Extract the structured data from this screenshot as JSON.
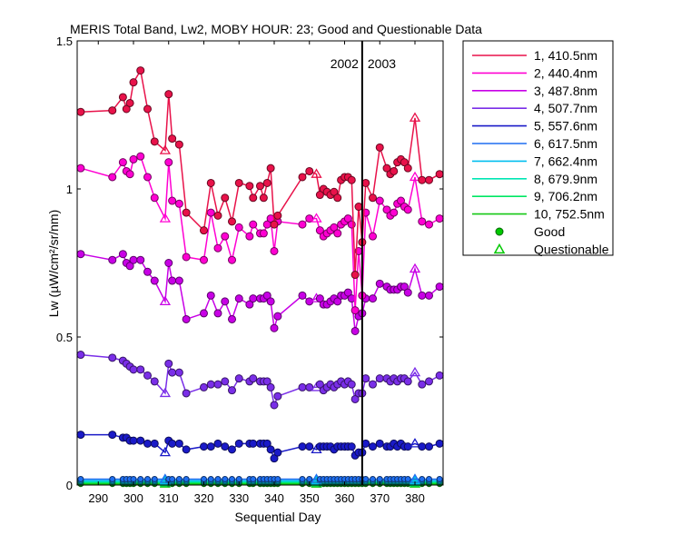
{
  "chart_data": {
    "type": "line",
    "title": "MERIS Total Band,  Lw2, MOBY HOUR: 23;  Good and Questionable Data",
    "xlabel": "Sequential Day",
    "ylabel": "Lw (µW/cm²/sr/nm)",
    "xlim": [
      284,
      388
    ],
    "ylim": [
      0,
      1.5
    ],
    "xticks": [
      290,
      300,
      310,
      320,
      330,
      340,
      350,
      360,
      370,
      380
    ],
    "yticks": [
      0,
      0.5,
      1,
      1.5
    ],
    "ytick_labels": [
      "0",
      "0.5",
      "1",
      "1.5"
    ],
    "grid": false,
    "year_divider": {
      "x": 365,
      "left_label": "2002",
      "right_label": "2003"
    },
    "legend_position": "outside-right",
    "x": [
      285,
      294,
      297,
      298,
      299,
      300,
      302,
      304,
      306,
      309,
      310,
      311,
      313,
      315,
      320,
      322,
      324,
      326,
      328,
      330,
      333,
      334,
      336,
      337,
      338,
      339,
      340,
      341,
      348,
      350,
      352,
      353,
      354,
      355,
      356,
      357,
      358,
      359,
      360,
      361,
      362,
      363,
      364,
      365,
      366,
      368,
      370,
      372,
      373,
      374,
      375,
      376,
      377,
      378,
      380,
      382,
      384,
      387
    ],
    "questionable_x": [
      309,
      352,
      369,
      380
    ],
    "series": [
      {
        "name": "1, 410.5nm",
        "color": "#E8124A",
        "values": [
          1.26,
          1.265,
          1.31,
          1.27,
          1.29,
          1.36,
          1.4,
          1.27,
          1.16,
          1.13,
          1.32,
          1.17,
          1.15,
          0.92,
          0.86,
          1.02,
          0.91,
          0.97,
          0.89,
          1.02,
          1.01,
          0.97,
          1.01,
          0.97,
          1.02,
          1.07,
          0.88,
          0.91,
          1.04,
          1.06,
          1.05,
          0.98,
          1.0,
          0.99,
          0.98,
          0.99,
          0.97,
          1.03,
          1.04,
          1.04,
          1.03,
          0.71,
          0.94,
          0.82,
          1.02,
          0.97,
          1.14,
          1.07,
          1.05,
          1.06,
          1.09,
          1.1,
          1.09,
          1.07,
          1.24,
          1.03,
          1.03,
          1.05
        ]
      },
      {
        "name": "2, 440.4nm",
        "color": "#FF00D2",
        "values": [
          1.07,
          1.04,
          1.09,
          1.06,
          1.05,
          1.1,
          1.11,
          1.04,
          0.97,
          0.9,
          1.09,
          0.96,
          0.95,
          0.77,
          0.76,
          0.92,
          0.8,
          0.84,
          0.76,
          0.87,
          0.84,
          0.88,
          0.85,
          0.85,
          0.88,
          0.9,
          0.79,
          0.89,
          0.88,
          0.9,
          0.9,
          0.86,
          0.84,
          0.85,
          0.86,
          0.87,
          0.85,
          0.88,
          0.89,
          0.9,
          0.88,
          0.59,
          0.79,
          0.64,
          0.92,
          0.84,
          0.96,
          0.93,
          0.91,
          0.92,
          0.95,
          0.96,
          0.94,
          0.93,
          1.04,
          0.89,
          0.88,
          0.9
        ]
      },
      {
        "name": "3, 487.8nm",
        "color": "#C800E6",
        "values": [
          0.78,
          0.76,
          0.78,
          0.75,
          0.74,
          0.76,
          0.76,
          0.72,
          0.69,
          0.62,
          0.75,
          0.69,
          0.69,
          0.56,
          0.58,
          0.64,
          0.58,
          0.62,
          0.56,
          0.63,
          0.61,
          0.63,
          0.63,
          0.63,
          0.64,
          0.62,
          0.53,
          0.57,
          0.64,
          0.62,
          0.63,
          0.63,
          0.61,
          0.61,
          0.62,
          0.63,
          0.62,
          0.64,
          0.64,
          0.65,
          0.63,
          0.52,
          0.57,
          0.58,
          0.63,
          0.63,
          0.68,
          0.67,
          0.66,
          0.66,
          0.66,
          0.67,
          0.67,
          0.65,
          0.73,
          0.64,
          0.64,
          0.67
        ]
      },
      {
        "name": "4, 507.7nm",
        "color": "#7A2EE8",
        "values": [
          0.44,
          0.43,
          0.42,
          0.41,
          0.4,
          0.39,
          0.39,
          0.37,
          0.35,
          0.31,
          0.41,
          0.38,
          0.38,
          0.31,
          0.33,
          0.34,
          0.34,
          0.35,
          0.32,
          0.36,
          0.35,
          0.36,
          0.35,
          0.35,
          0.35,
          0.33,
          0.27,
          0.3,
          0.33,
          0.33,
          0.33,
          0.34,
          0.32,
          0.33,
          0.34,
          0.33,
          0.34,
          0.35,
          0.34,
          0.35,
          0.34,
          0.29,
          0.31,
          0.31,
          0.36,
          0.34,
          0.36,
          0.36,
          0.35,
          0.36,
          0.35,
          0.36,
          0.36,
          0.35,
          0.38,
          0.34,
          0.35,
          0.37
        ]
      },
      {
        "name": "5, 557.6nm",
        "color": "#1A1AC8",
        "values": [
          0.17,
          0.17,
          0.16,
          0.16,
          0.15,
          0.15,
          0.15,
          0.14,
          0.14,
          0.11,
          0.15,
          0.14,
          0.14,
          0.12,
          0.13,
          0.13,
          0.14,
          0.13,
          0.12,
          0.14,
          0.14,
          0.14,
          0.14,
          0.14,
          0.14,
          0.12,
          0.09,
          0.11,
          0.13,
          0.13,
          0.12,
          0.13,
          0.13,
          0.13,
          0.13,
          0.12,
          0.13,
          0.13,
          0.13,
          0.13,
          0.13,
          0.1,
          0.11,
          0.11,
          0.14,
          0.13,
          0.14,
          0.13,
          0.13,
          0.14,
          0.13,
          0.14,
          0.13,
          0.13,
          0.14,
          0.13,
          0.13,
          0.14
        ]
      },
      {
        "name": "6, 617.5nm",
        "color": "#1E6EF0",
        "values": [
          0.02,
          0.02,
          0.02,
          0.02,
          0.02,
          0.02,
          0.02,
          0.02,
          0.02,
          0.02,
          0.02,
          0.02,
          0.02,
          0.02,
          0.02,
          0.02,
          0.02,
          0.02,
          0.02,
          0.02,
          0.02,
          0.02,
          0.02,
          0.02,
          0.02,
          0.02,
          0.02,
          0.02,
          0.02,
          0.02,
          0.02,
          0.02,
          0.02,
          0.02,
          0.02,
          0.02,
          0.02,
          0.02,
          0.02,
          0.02,
          0.02,
          0.02,
          0.02,
          0.02,
          0.02,
          0.02,
          0.02,
          0.02,
          0.02,
          0.02,
          0.02,
          0.02,
          0.02,
          0.02,
          0.02,
          0.02,
          0.02,
          0.02
        ]
      },
      {
        "name": "7, 662.4nm",
        "color": "#00BEEF",
        "values": [
          0.015,
          0.015,
          0.015,
          0.015,
          0.015,
          0.015,
          0.015,
          0.015,
          0.015,
          0.015,
          0.015,
          0.015,
          0.015,
          0.015,
          0.015,
          0.015,
          0.015,
          0.015,
          0.015,
          0.015,
          0.015,
          0.015,
          0.015,
          0.015,
          0.015,
          0.015,
          0.015,
          0.015,
          0.015,
          0.015,
          0.015,
          0.015,
          0.015,
          0.015,
          0.015,
          0.015,
          0.015,
          0.015,
          0.015,
          0.015,
          0.015,
          0.015,
          0.015,
          0.015,
          0.015,
          0.015,
          0.015,
          0.015,
          0.015,
          0.015,
          0.015,
          0.015,
          0.015,
          0.015,
          0.015,
          0.015,
          0.015,
          0.015
        ]
      },
      {
        "name": "8, 679.9nm",
        "color": "#00E6B4",
        "values": [
          0.012,
          0.012,
          0.012,
          0.012,
          0.012,
          0.012,
          0.012,
          0.012,
          0.012,
          0.012,
          0.012,
          0.012,
          0.012,
          0.012,
          0.012,
          0.012,
          0.012,
          0.012,
          0.012,
          0.012,
          0.012,
          0.012,
          0.012,
          0.012,
          0.012,
          0.012,
          0.012,
          0.012,
          0.012,
          0.012,
          0.012,
          0.012,
          0.012,
          0.012,
          0.012,
          0.012,
          0.012,
          0.012,
          0.012,
          0.012,
          0.012,
          0.012,
          0.012,
          0.012,
          0.012,
          0.012,
          0.012,
          0.012,
          0.012,
          0.012,
          0.012,
          0.012,
          0.012,
          0.012,
          0.012,
          0.012,
          0.012,
          0.012
        ]
      },
      {
        "name": "9, 706.2nm",
        "color": "#00E664",
        "values": [
          0.008,
          0.008,
          0.008,
          0.008,
          0.008,
          0.008,
          0.008,
          0.008,
          0.008,
          0.008,
          0.008,
          0.008,
          0.008,
          0.008,
          0.008,
          0.008,
          0.008,
          0.008,
          0.008,
          0.008,
          0.008,
          0.008,
          0.008,
          0.008,
          0.008,
          0.008,
          0.008,
          0.008,
          0.008,
          0.008,
          0.008,
          0.008,
          0.008,
          0.008,
          0.008,
          0.008,
          0.008,
          0.008,
          0.008,
          0.008,
          0.008,
          0.008,
          0.008,
          0.008,
          0.008,
          0.008,
          0.008,
          0.008,
          0.008,
          0.008,
          0.008,
          0.008,
          0.008,
          0.008,
          0.008,
          0.008,
          0.008,
          0.008
        ]
      },
      {
        "name": "10, 752.5nm",
        "color": "#14C814",
        "values": [
          0.004,
          0.004,
          0.004,
          0.004,
          0.004,
          0.004,
          0.004,
          0.004,
          0.004,
          0.004,
          0.004,
          0.004,
          0.004,
          0.004,
          0.004,
          0.004,
          0.004,
          0.004,
          0.004,
          0.004,
          0.004,
          0.004,
          0.004,
          0.004,
          0.004,
          0.004,
          0.004,
          0.004,
          0.004,
          0.004,
          0.004,
          0.004,
          0.004,
          0.004,
          0.004,
          0.004,
          0.004,
          0.004,
          0.004,
          0.004,
          0.004,
          0.004,
          0.004,
          0.004,
          0.004,
          0.004,
          0.004,
          0.004,
          0.004,
          0.004,
          0.004,
          0.004,
          0.004,
          0.004,
          0.004,
          0.004,
          0.004,
          0.004
        ]
      }
    ],
    "marker_legend": [
      {
        "label": "Good",
        "marker": "circle",
        "color": "#00C800"
      },
      {
        "label": "Questionable",
        "marker": "triangle",
        "color": "#00C800"
      }
    ]
  }
}
